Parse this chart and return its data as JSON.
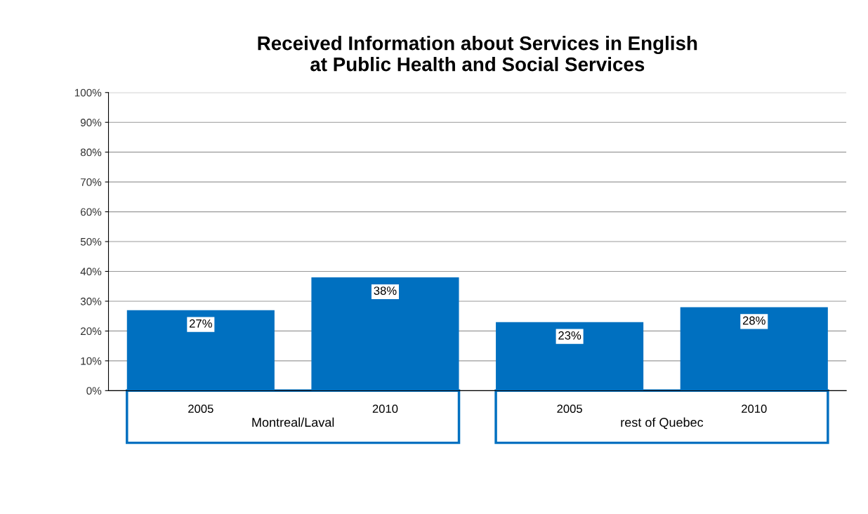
{
  "chart_data": {
    "type": "bar",
    "title": "Received Information about Services in English\nat Public Health and Social Services",
    "categories": [
      "2005",
      "2010",
      "2005",
      "2010"
    ],
    "values": [
      27,
      38,
      23,
      28
    ],
    "color": "#0070c0",
    "value_labels": [
      "27%",
      "38%",
      "23%",
      "28%"
    ],
    "ylim": [
      0,
      100
    ],
    "yticks": [
      {
        "value": 0,
        "label": "0%"
      },
      {
        "value": 10,
        "label": "10%"
      },
      {
        "value": 20,
        "label": "20%"
      },
      {
        "value": 30,
        "label": "30%"
      },
      {
        "value": 40,
        "label": "40%"
      },
      {
        "value": 50,
        "label": "50%"
      },
      {
        "value": 60,
        "label": "60%"
      },
      {
        "value": 70,
        "label": "70%"
      },
      {
        "value": 80,
        "label": "80%"
      },
      {
        "value": 90,
        "label": "90%"
      },
      {
        "value": 100,
        "label": "100%"
      }
    ],
    "grid": "y",
    "annotations": [
      "Montreal/Laval",
      "rest of Quebec"
    ]
  }
}
